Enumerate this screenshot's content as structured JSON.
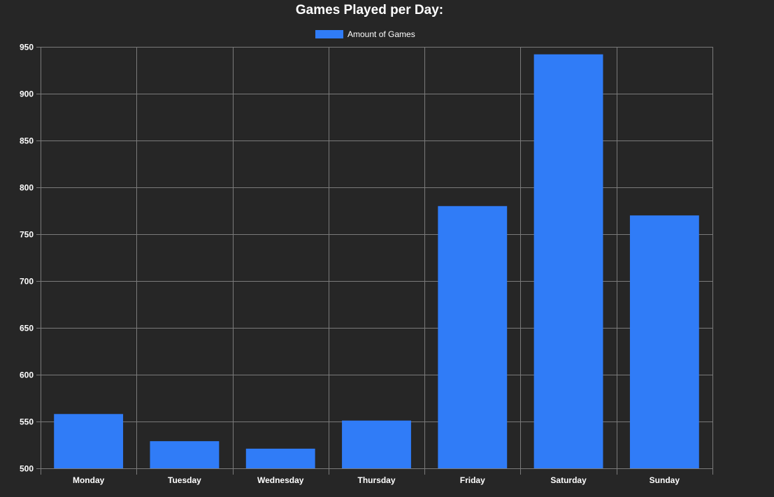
{
  "chart_data": {
    "type": "bar",
    "title": "Games Played per Day:",
    "xlabel": "",
    "ylabel": "",
    "categories": [
      "Monday",
      "Tuesday",
      "Wednesday",
      "Thursday",
      "Friday",
      "Saturday",
      "Sunday"
    ],
    "series": [
      {
        "name": "Amount of Games",
        "values": [
          558,
          529,
          521,
          551,
          780,
          942,
          770
        ],
        "color": "#307cf7"
      }
    ],
    "ylim": [
      500,
      950
    ],
    "yticks": [
      500,
      550,
      600,
      650,
      700,
      750,
      800,
      850,
      900,
      950
    ],
    "grid": true,
    "legend_position": "top-center",
    "background": "#262626",
    "grid_color": "#7a7a7a",
    "text_color": "#ffffff"
  }
}
